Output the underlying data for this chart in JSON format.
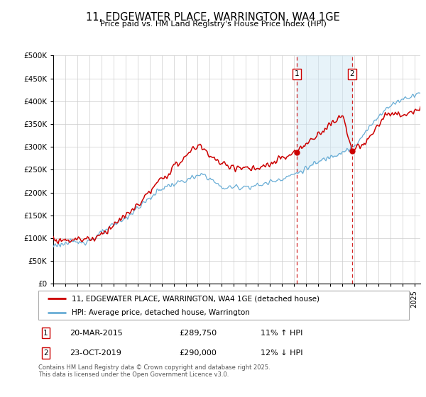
{
  "title": "11, EDGEWATER PLACE, WARRINGTON, WA4 1GE",
  "subtitle": "Price paid vs. HM Land Registry's House Price Index (HPI)",
  "ytick_values": [
    0,
    50000,
    100000,
    150000,
    200000,
    250000,
    300000,
    350000,
    400000,
    450000,
    500000
  ],
  "ylim": [
    0,
    500000
  ],
  "xlim_start": 1995.0,
  "xlim_end": 2025.5,
  "sale1_x": 2015.22,
  "sale1_y": 289750,
  "sale2_x": 2019.82,
  "sale2_y": 290000,
  "red_line_color": "#cc0000",
  "blue_line_color": "#6aaed6",
  "blue_fill_color": "#d0e8f5",
  "grid_color": "#cccccc",
  "vline_color": "#cc0000",
  "legend_label_red": "11, EDGEWATER PLACE, WARRINGTON, WA4 1GE (detached house)",
  "legend_label_blue": "HPI: Average price, detached house, Warrington",
  "footer": "Contains HM Land Registry data © Crown copyright and database right 2025.\nThis data is licensed under the Open Government Licence v3.0.",
  "annotation1_date": "20-MAR-2015",
  "annotation1_price": "£289,750",
  "annotation1_pct": "11% ↑ HPI",
  "annotation2_date": "23-OCT-2019",
  "annotation2_price": "£290,000",
  "annotation2_pct": "12% ↓ HPI"
}
